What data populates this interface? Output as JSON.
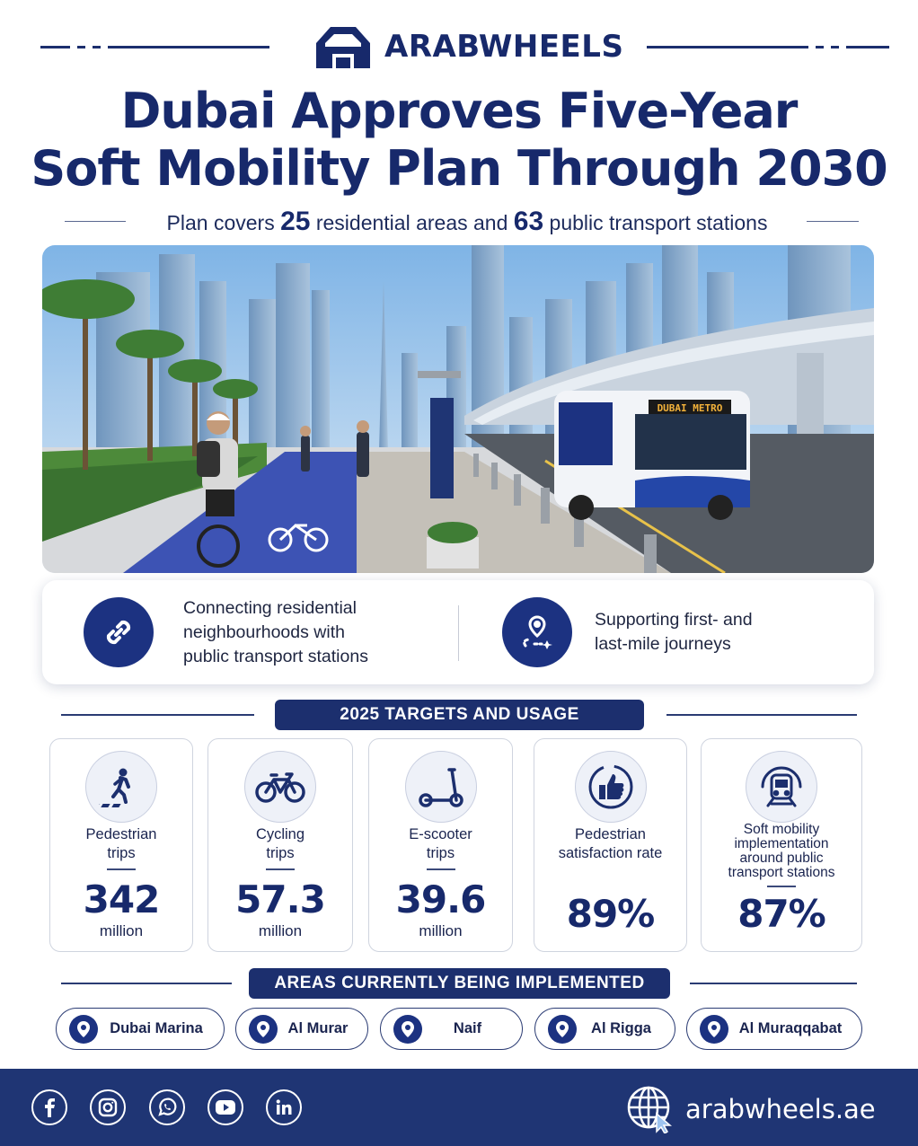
{
  "brand": {
    "name": "ARABWHEELS",
    "logo_icon": "arabwheels-logo-icon"
  },
  "headline": {
    "line1": "Dubai Approves Five-Year",
    "line2": "Soft Mobility Plan Through 2030"
  },
  "subtitle": {
    "prefix": "Plan covers",
    "areas_count": "25",
    "middle": "residential areas and",
    "stations_count": "63",
    "suffix": "public transport stations"
  },
  "hero": {
    "bus_sign": "DUBAI METRO",
    "image_icon": "dubai-street-scene"
  },
  "features": [
    {
      "icon": "link-icon",
      "line1": "Connecting residential",
      "line2": "neighbourhoods with",
      "line3": "public transport stations"
    },
    {
      "icon": "route-pin-icon",
      "line1": "Supporting first- and",
      "line2": "last-mile journeys"
    }
  ],
  "targets": {
    "heading": "2025 TARGETS AND USAGE",
    "cards": [
      {
        "icon": "pedestrian-icon",
        "label1": "Pedestrian",
        "label2": "trips",
        "value": "342",
        "unit": "million"
      },
      {
        "icon": "bicycle-icon",
        "label1": "Cycling",
        "label2": "trips",
        "value": "57.3",
        "unit": "million"
      },
      {
        "icon": "e-scooter-icon",
        "label1": "E-scooter",
        "label2": "trips",
        "value": "39.6",
        "unit": "million"
      },
      {
        "icon": "thumbs-up-icon",
        "label1": "Pedestrian",
        "label2": "satisfaction rate",
        "value": "89%"
      },
      {
        "icon": "train-icon",
        "label1": "Soft mobility",
        "label2": "implementation",
        "label3": "around public",
        "label4": "transport stations",
        "value": "87%"
      }
    ]
  },
  "areas": {
    "heading": "AREAS CURRENTLY BEING IMPLEMENTED",
    "items": [
      "Dubai Marina",
      "Al Murar",
      "Naif",
      "Al Rigga",
      "Al Muraqqabat"
    ]
  },
  "footer": {
    "social": [
      "facebook-icon",
      "instagram-icon",
      "whatsapp-icon",
      "youtube-icon",
      "linkedin-icon"
    ],
    "website": "arabwheels.ae"
  },
  "colors": {
    "navy": "#17296b",
    "footer": "#1f3574",
    "accent": "#1c3281"
  }
}
